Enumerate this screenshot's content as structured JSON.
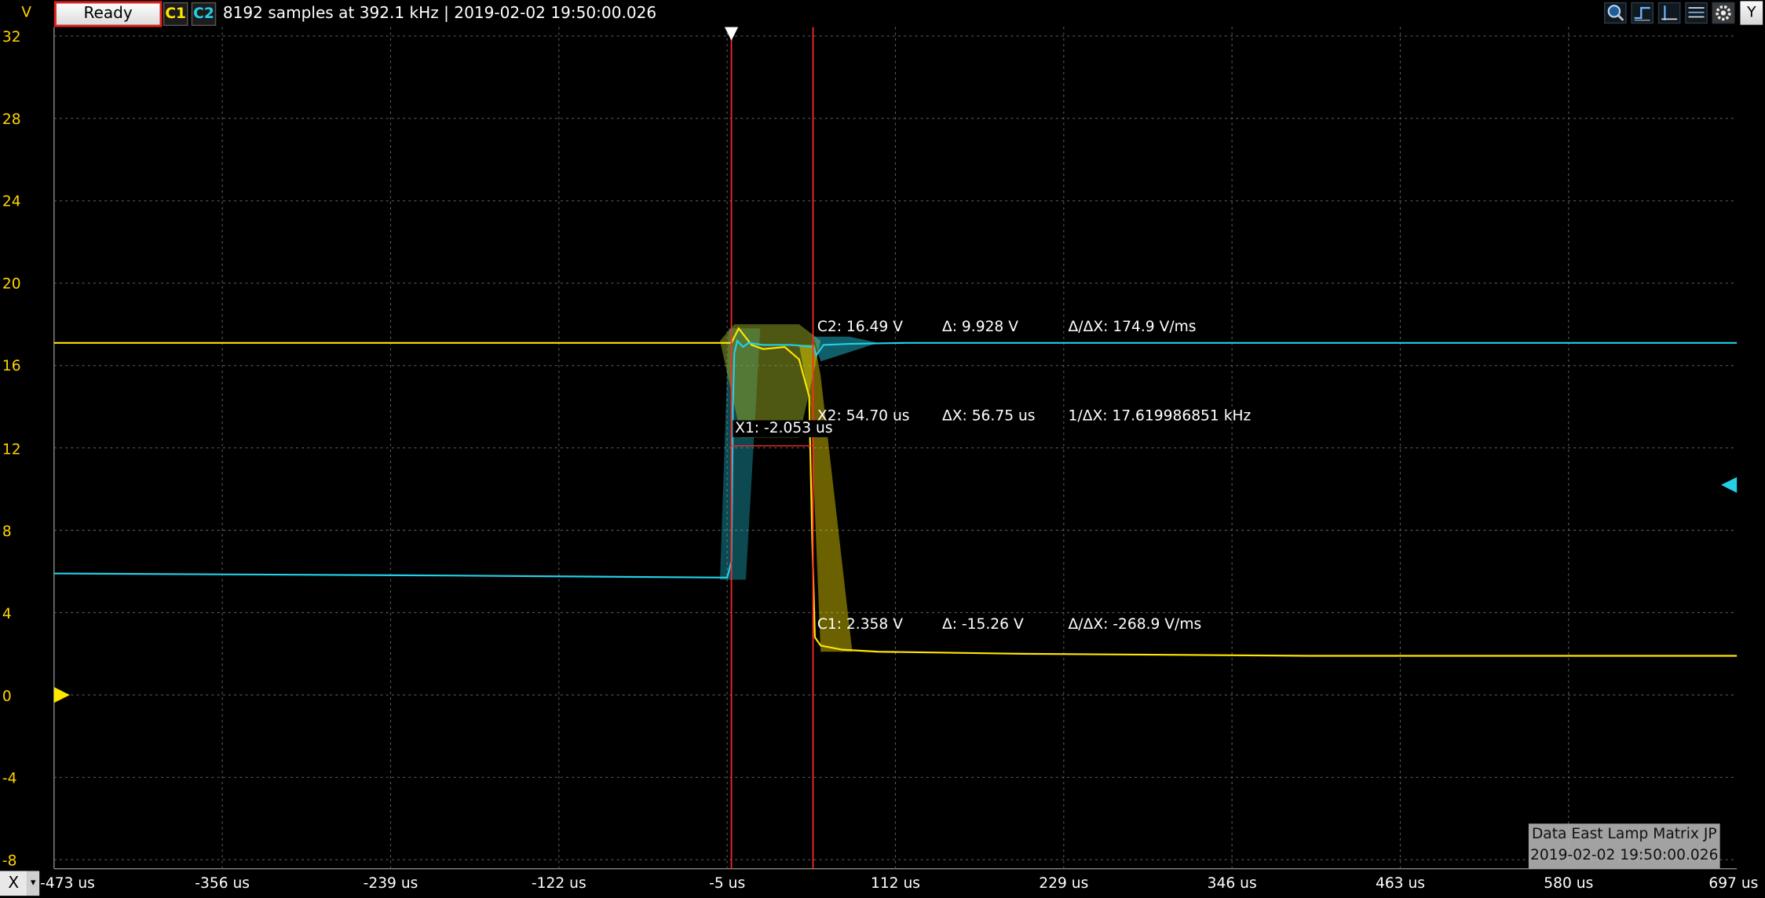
{
  "topbar": {
    "unit_label": "V",
    "status": "Ready",
    "channel1": "C1",
    "channel2": "C2",
    "info": "8192 samples at 392.1 kHz | 2019-02-02 19:50:00.026",
    "y_button": "Y",
    "icons": [
      "zoom-icon",
      "trigger-icon",
      "cursor-icon",
      "measure-icon",
      "settings-gear-icon"
    ]
  },
  "x_axis": {
    "button": "X",
    "ticks": [
      "-473 us",
      "-356 us",
      "-239 us",
      "-122 us",
      "-5 us",
      "112 us",
      "229 us",
      "346 us",
      "463 us",
      "580 us",
      "697 us"
    ]
  },
  "y_axis": {
    "ticks": [
      "32",
      "28",
      "24",
      "20",
      "16",
      "12",
      "8",
      "4",
      "0",
      "-4",
      "-8"
    ]
  },
  "cursors": {
    "x1": "X1: -2.053 us",
    "x2": "X2: 54.70 us",
    "dx": "ΔX: 56.75 us",
    "inv_dx": "1/ΔX: 17.619986851 kHz",
    "c2_value": "C2: 16.49 V",
    "c2_delta": "Δ: 9.928 V",
    "c2_rate": "Δ/ΔX: 174.9 V/ms",
    "c1_value": "C1: 2.358 V",
    "c1_delta": "Δ: -15.26 V",
    "c1_rate": "Δ/ΔX: -268.9 V/ms"
  },
  "watermark": {
    "line1": "Data East Lamp Matrix JP",
    "line2": "2019-02-02 19:50:00.026"
  },
  "colors": {
    "channel1": "#ffe600",
    "channel2": "#23d0e8",
    "cursor": "#ff2a2a",
    "grid": "#5a5a5a"
  },
  "chart_data": {
    "type": "line",
    "xlabel": "",
    "ylabel": "V",
    "xlim": [
      -473,
      697
    ],
    "ylim": [
      -8,
      32
    ],
    "grid": true,
    "series": [
      {
        "name": "C1",
        "x": [
          -473,
          -10,
          -2,
          3,
          12,
          20,
          35,
          45,
          52,
          54,
          56,
          60,
          75,
          100,
          200,
          400,
          697
        ],
        "y": [
          17.1,
          17.1,
          17.1,
          17.8,
          17.0,
          16.8,
          16.9,
          16.3,
          14.5,
          8,
          2.8,
          2.4,
          2.2,
          2.1,
          2.0,
          1.9,
          1.9
        ]
      },
      {
        "name": "C2",
        "x": [
          -473,
          -200,
          -5,
          -2,
          -1,
          0,
          2,
          6,
          10,
          20,
          40,
          55,
          57,
          62,
          80,
          120,
          697
        ],
        "y": [
          5.9,
          5.8,
          5.7,
          6.5,
          14,
          16.6,
          17.2,
          16.9,
          17.1,
          17.0,
          17.0,
          16.9,
          16.5,
          17.0,
          17.05,
          17.1,
          17.1
        ]
      }
    ]
  }
}
